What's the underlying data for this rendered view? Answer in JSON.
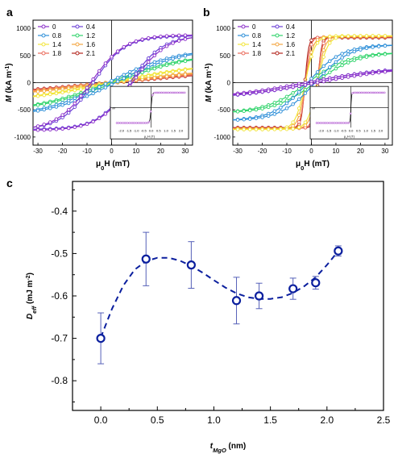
{
  "chart_data": [
    {
      "panel": "a",
      "type": "line",
      "xlabel_parts": [
        "μ",
        "0",
        "H (mT)"
      ],
      "ylabel_parts": [
        "M",
        " (kA m",
        "-1",
        ")"
      ],
      "xlim": [
        -32,
        33
      ],
      "ylim": [
        -1150,
        1150
      ],
      "xticks": [
        -30,
        -20,
        -10,
        0,
        10,
        20,
        30
      ],
      "yticks": [
        -1000,
        -500,
        0,
        500,
        1000
      ],
      "legend_placement": "top-left",
      "series": [
        {
          "name": "0",
          "color": "#8b2fc9",
          "Ms": 880,
          "Mr": 150,
          "Hc": 8.5,
          "H0": 14
        },
        {
          "name": "0.4",
          "color": "#6a3fd6",
          "Ms": 860,
          "Mr": 130,
          "Hc": 7.5,
          "H0": 13
        },
        {
          "name": "0.8",
          "color": "#2e8fd8",
          "Ms": 640,
          "Mr": 30,
          "Hc": 1.5,
          "H0": 28
        },
        {
          "name": "1.2",
          "color": "#2fd36a",
          "Ms": 550,
          "Mr": 20,
          "Hc": 1.0,
          "H0": 32
        },
        {
          "name": "1.4",
          "color": "#f2e53a",
          "Ms": 420,
          "Mr": 10,
          "Hc": 0.5,
          "H0": 46
        },
        {
          "name": "1.6",
          "color": "#f4a642",
          "Ms": 330,
          "Mr": 10,
          "Hc": 0.5,
          "H0": 58
        },
        {
          "name": "1.8",
          "color": "#ea6a5a",
          "Ms": 300,
          "Mr": 10,
          "Hc": 0.5,
          "H0": 62
        },
        {
          "name": "2.1",
          "color": "#b3261e",
          "Ms": 290,
          "Mr": 10,
          "Hc": 0.5,
          "H0": 65
        }
      ],
      "inset": {
        "xlabel_parts": [
          "μ",
          "0",
          "H (T)"
        ],
        "ylabel": "M",
        "xlim": [
          -2.3,
          2.3
        ],
        "xticks": [
          -2.0,
          -1.5,
          -1.0,
          -0.5,
          0.0,
          0.5,
          1.0,
          1.5,
          2.0
        ],
        "Ms": 1,
        "switch_width": 0.08
      }
    },
    {
      "panel": "b",
      "type": "line",
      "xlabel_parts": [
        "μ",
        "0",
        "H (mT)"
      ],
      "ylabel_parts": [
        "M",
        " (kA m",
        "-1",
        ")"
      ],
      "xlim": [
        -32,
        33
      ],
      "ylim": [
        -1150,
        1150
      ],
      "xticks": [
        -30,
        -20,
        -10,
        0,
        10,
        20,
        30
      ],
      "yticks": [
        -1000,
        -500,
        0,
        500,
        1000
      ],
      "legend_placement": "top-left",
      "series": [
        {
          "name": "0",
          "color": "#8b2fc9",
          "Ms": 300,
          "Mr": 20,
          "Hc": 1.0,
          "H0": 35
        },
        {
          "name": "0.4",
          "color": "#6a3fd6",
          "Ms": 310,
          "Mr": 20,
          "Hc": 1.0,
          "H0": 35
        },
        {
          "name": "0.8",
          "color": "#2e8fd8",
          "Ms": 700,
          "Mr": 60,
          "Hc": 1.5,
          "H0": 14
        },
        {
          "name": "1.2",
          "color": "#2fd36a",
          "Ms": 560,
          "Mr": 40,
          "Hc": 1.5,
          "H0": 17
        },
        {
          "name": "1.4",
          "color": "#f2e53a",
          "Ms": 860,
          "Mr": 480,
          "Hc": 1.5,
          "H0": 4
        },
        {
          "name": "1.6",
          "color": "#f4a642",
          "Ms": 850,
          "Mr": 560,
          "Hc": 1.5,
          "H0": 3
        },
        {
          "name": "1.8",
          "color": "#ea6a5a",
          "Ms": 840,
          "Mr": 700,
          "Hc": 1.5,
          "H0": 2
        },
        {
          "name": "2.1",
          "color": "#b3261e",
          "Ms": 830,
          "Mr": 780,
          "Hc": 1.0,
          "H0": 1.5
        }
      ],
      "inset": {
        "xlabel_parts": [
          "μ",
          "0",
          "H (T)"
        ],
        "ylabel": "M",
        "xlim": [
          -2.3,
          2.3
        ],
        "xticks": [
          -2.0,
          -1.5,
          -1.0,
          -0.5,
          0.0,
          0.5,
          1.0,
          1.5,
          2.0
        ],
        "Ms": 1,
        "switch_width": 0.05
      }
    },
    {
      "panel": "c",
      "type": "scatter",
      "xlabel_parts": [
        "t",
        "MgO",
        " (nm)"
      ],
      "ylabel_parts": [
        "D",
        "eff",
        " (mJ m",
        "-2",
        ")"
      ],
      "xlim": [
        -0.25,
        2.5
      ],
      "ylim": [
        -0.87,
        -0.33
      ],
      "xticks": [
        0.0,
        0.5,
        1.0,
        1.5,
        2.0,
        2.5
      ],
      "yticks": [
        -0.8,
        -0.7,
        -0.6,
        -0.5,
        -0.4
      ],
      "marker_color": "#0b1f9e",
      "x": [
        0.0,
        0.4,
        0.8,
        1.2,
        1.4,
        1.7,
        1.9,
        2.1
      ],
      "y": [
        -0.7,
        -0.513,
        -0.527,
        -0.611,
        -0.6,
        -0.583,
        -0.569,
        -0.494
      ],
      "err": [
        0.06,
        0.063,
        0.055,
        0.055,
        0.03,
        0.025,
        0.015,
        0.012
      ],
      "fit_x": [
        0.0,
        0.1,
        0.2,
        0.3,
        0.4,
        0.5,
        0.6,
        0.7,
        0.8,
        0.9,
        1.0,
        1.1,
        1.2,
        1.3,
        1.4,
        1.5,
        1.6,
        1.7,
        1.8,
        1.9,
        2.0,
        2.1
      ],
      "fit_y": [
        -0.698,
        -0.63,
        -0.575,
        -0.538,
        -0.518,
        -0.51,
        -0.51,
        -0.517,
        -0.529,
        -0.545,
        -0.563,
        -0.58,
        -0.594,
        -0.603,
        -0.607,
        -0.607,
        -0.603,
        -0.593,
        -0.577,
        -0.556,
        -0.527,
        -0.494
      ]
    }
  ]
}
